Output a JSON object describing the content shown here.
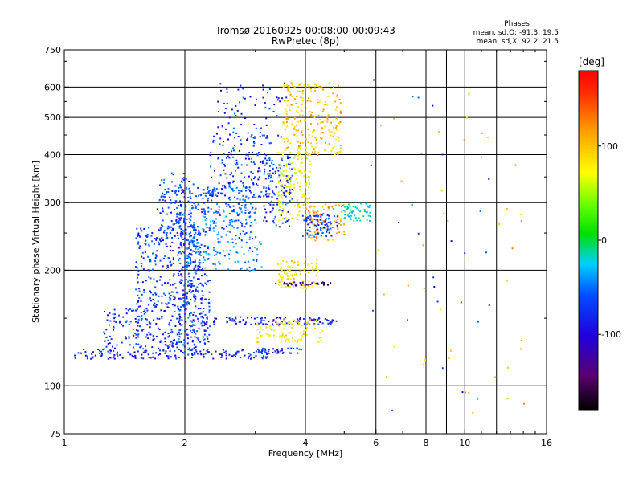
{
  "chart_data": {
    "type": "scatter",
    "title": "Tromsø 20160925 00:08:00-00:09:43",
    "subtitle": "RwPretec (8p)",
    "xlabel": "Frequency [MHz]",
    "ylabel": "Stationary phase Virtual Height [km]",
    "x_scale": "log2",
    "y_scale": "log",
    "xlim": [
      1,
      16
    ],
    "ylim": [
      75,
      750
    ],
    "x_ticks": [
      1,
      2,
      4,
      6,
      8,
      10,
      16
    ],
    "x_tick_labels": [
      "1",
      "2",
      "4",
      "6",
      "8",
      "10",
      "16"
    ],
    "y_ticks": [
      75,
      100,
      200,
      300,
      400,
      500,
      600,
      750
    ],
    "y_tick_labels": [
      "75",
      "100",
      "200",
      "300",
      "400",
      "500",
      "600",
      "750"
    ],
    "grid": true,
    "phase_stats": {
      "header": "Phases",
      "line_o": "mean, sd,O: -91.3, 19.5",
      "line_x": "mean, sd,X:  92.2, 21.5"
    },
    "colorbar": {
      "label": "[deg]",
      "ticks": [
        100,
        0,
        -100
      ],
      "tick_labels": [
        "100",
        "0",
        "-100"
      ],
      "range": [
        -180,
        180
      ]
    },
    "clusters": [
      {
        "f": [
          1.05,
          3.2
        ],
        "h": [
          118,
          125
        ],
        "phase": -100,
        "n": 160
      },
      {
        "f": [
          1.25,
          2.3
        ],
        "h": [
          125,
          160
        ],
        "phase": -95,
        "n": 220
      },
      {
        "f": [
          1.5,
          2.2
        ],
        "h": [
          160,
          260
        ],
        "phase": -90,
        "n": 300
      },
      {
        "f": [
          1.7,
          2.1
        ],
        "h": [
          250,
          360
        ],
        "phase": -88,
        "n": 120
      },
      {
        "f": [
          1.9,
          2.3
        ],
        "h": [
          120,
          330
        ],
        "phase": -85,
        "n": 260
      },
      {
        "f": [
          2.2,
          3.0
        ],
        "h": [
          240,
          330
        ],
        "phase": -70,
        "n": 180
      },
      {
        "f": [
          2.3,
          3.3
        ],
        "h": [
          310,
          460
        ],
        "phase": -92,
        "n": 160
      },
      {
        "f": [
          2.4,
          3.6
        ],
        "h": [
          440,
          620
        ],
        "phase": -95,
        "n": 70
      },
      {
        "f": [
          2.2,
          4.8
        ],
        "h": [
          145,
          152
        ],
        "phase": -100,
        "n": 120
      },
      {
        "f": [
          2.0,
          3.1
        ],
        "h": [
          200,
          240
        ],
        "phase": -65,
        "n": 90
      },
      {
        "f": [
          3.4,
          4.1
        ],
        "h": [
          270,
          420
        ],
        "phase": 70,
        "n": 160
      },
      {
        "f": [
          3.5,
          4.9
        ],
        "h": [
          400,
          620
        ],
        "phase": 95,
        "n": 240
      },
      {
        "f": [
          3.1,
          3.7
        ],
        "h": [
          260,
          400
        ],
        "phase": -90,
        "n": 110
      },
      {
        "f": [
          3.4,
          4.3
        ],
        "h": [
          180,
          215
        ],
        "phase": 80,
        "n": 100
      },
      {
        "f": [
          3.0,
          4.4
        ],
        "h": [
          130,
          150
        ],
        "phase": 80,
        "n": 90
      },
      {
        "f": [
          4.0,
          5.0
        ],
        "h": [
          240,
          300
        ],
        "phase": 110,
        "n": 90
      },
      {
        "f": [
          3.9,
          4.8
        ],
        "h": [
          245,
          280
        ],
        "phase": -90,
        "n": 80
      },
      {
        "f": [
          4.9,
          5.8
        ],
        "h": [
          270,
          300
        ],
        "phase": -35,
        "n": 50
      },
      {
        "f": [
          3.3,
          4.6
        ],
        "h": [
          183,
          187
        ],
        "phase": -150,
        "n": 30
      },
      {
        "f": [
          3.0,
          3.9
        ],
        "h": [
          122,
          126
        ],
        "phase": -95,
        "n": 40
      },
      {
        "f": [
          5.8,
          14.0
        ],
        "h": [
          85,
          660
        ],
        "phase": 100,
        "n": 45
      },
      {
        "f": [
          5.8,
          12.0
        ],
        "h": [
          85,
          650
        ],
        "phase": -90,
        "n": 25
      }
    ]
  }
}
